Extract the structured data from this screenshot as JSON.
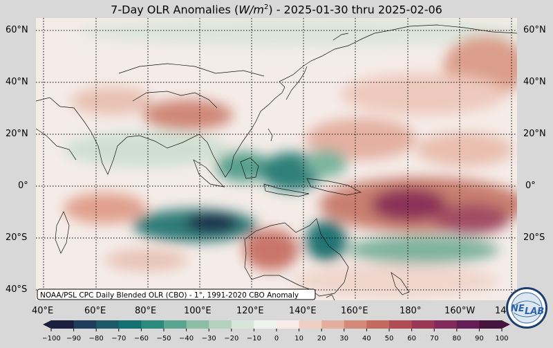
{
  "title": {
    "prefix": "7-Day OLR Anomalies (",
    "unit_var": "W/m",
    "unit_exp": "2",
    "suffix": ") - 2025-01-30 thru 2025-02-06"
  },
  "source_note": "NOAA/PSL CPC Daily Blended OLR (CBO) - 1°, 1991-2020 CBO Anomaly",
  "lat_labels": [
    "60°N",
    "40°N",
    "20°N",
    "0°",
    "20°S",
    "40°S"
  ],
  "lon_labels": [
    "40°E",
    "60°E",
    "80°E",
    "100°E",
    "120°E",
    "140°E",
    "160°E",
    "180°",
    "160°W",
    "14"
  ],
  "colorbar": {
    "ticks": [
      "−100",
      "−90",
      "−80",
      "−70",
      "−60",
      "−50",
      "−40",
      "−30",
      "−20",
      "−10",
      "0",
      "10",
      "20",
      "30",
      "40",
      "50",
      "60",
      "70",
      "80",
      "90",
      "100"
    ],
    "neg_colors": [
      "#1a1f3d",
      "#1f3d5c",
      "#1c5a6a",
      "#137070",
      "#2a8a7e",
      "#5aa590",
      "#8bbea5",
      "#b4d3bf",
      "#d6e6d8",
      "#eef3ee"
    ],
    "pos_colors": [
      "#f8ece8",
      "#efcfc4",
      "#e3ae9e",
      "#d48a78",
      "#c46a5c",
      "#b04c52",
      "#9a3757",
      "#822a5c",
      "#651d55",
      "#46123e"
    ]
  },
  "logo_text": {
    "a": "NE",
    "b": "LAB"
  }
}
